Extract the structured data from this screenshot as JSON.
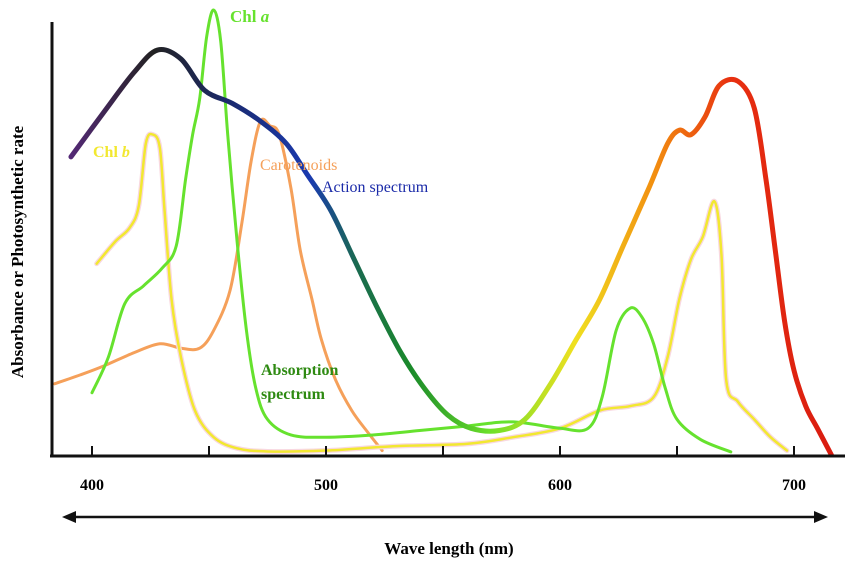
{
  "chart_data": {
    "type": "line",
    "title": "",
    "xlabel": "Wave length (nm)",
    "ylabel": "Absorbance or Photosynthetic rate",
    "xlim": [
      375,
      720
    ],
    "ylim": [
      0,
      1
    ],
    "x_ticks": [
      400,
      500,
      600,
      700
    ],
    "x_minor_ticks": [
      450,
      550,
      650
    ],
    "grid": false,
    "annotations": {
      "chl_a": {
        "text": "Chl ",
        "italic": "a",
        "color": "#66e22e"
      },
      "chl_b": {
        "text": "Chl ",
        "italic": "b",
        "color": "#f2e830"
      },
      "carotenoids": {
        "text": "Carotenoids",
        "color": "#f5a05a"
      },
      "action": {
        "text": "Action spectrum",
        "color": "#1a2aa8"
      },
      "absorption": {
        "line1": "Absorption",
        "line2": "spectrum",
        "color": "#2e8a12"
      }
    },
    "series": [
      {
        "name": "Action spectrum",
        "x": [
          391,
          405,
          418,
          428,
          438,
          448,
          460,
          472,
          483,
          492,
          502,
          512,
          522,
          532,
          542,
          552,
          562,
          574,
          585,
          596,
          607,
          617,
          627,
          638,
          646,
          651,
          656,
          662,
          668,
          676,
          683,
          688,
          692,
          696,
          700,
          705,
          710,
          716
        ],
        "y": [
          0.67,
          0.77,
          0.86,
          0.91,
          0.89,
          0.82,
          0.79,
          0.75,
          0.7,
          0.63,
          0.55,
          0.44,
          0.33,
          0.23,
          0.15,
          0.09,
          0.06,
          0.055,
          0.08,
          0.16,
          0.26,
          0.35,
          0.47,
          0.6,
          0.7,
          0.73,
          0.72,
          0.76,
          0.83,
          0.84,
          0.78,
          0.62,
          0.46,
          0.3,
          0.19,
          0.11,
          0.06,
          0.0
        ]
      },
      {
        "name": "Chl a",
        "x": [
          400,
          407,
          414,
          422,
          430,
          436,
          440,
          443,
          446,
          449,
          452,
          455,
          458,
          462,
          466,
          470,
          475,
          485,
          500,
          520,
          540,
          560,
          575,
          585,
          600,
          612,
          618,
          624,
          630,
          635,
          640,
          645,
          650,
          660,
          673
        ],
        "y": [
          0.14,
          0.22,
          0.34,
          0.38,
          0.42,
          0.47,
          0.62,
          0.72,
          0.8,
          0.94,
          1.0,
          0.93,
          0.72,
          0.48,
          0.28,
          0.15,
          0.08,
          0.045,
          0.04,
          0.045,
          0.055,
          0.065,
          0.074,
          0.072,
          0.06,
          0.06,
          0.13,
          0.28,
          0.33,
          0.31,
          0.25,
          0.15,
          0.08,
          0.035,
          0.007
        ]
      },
      {
        "name": "Chl b",
        "x": [
          402,
          410,
          416,
          420,
          423,
          426,
          429,
          431,
          434,
          438,
          444,
          452,
          462,
          475,
          500,
          530,
          560,
          580,
          600,
          617,
          630,
          640,
          646,
          651,
          656,
          661,
          666,
          669,
          671,
          676,
          683,
          690,
          697
        ],
        "y": [
          0.43,
          0.48,
          0.51,
          0.56,
          0.7,
          0.72,
          0.69,
          0.55,
          0.35,
          0.22,
          0.1,
          0.04,
          0.015,
          0.008,
          0.01,
          0.02,
          0.025,
          0.04,
          0.06,
          0.1,
          0.11,
          0.13,
          0.22,
          0.35,
          0.44,
          0.49,
          0.57,
          0.45,
          0.17,
          0.12,
          0.08,
          0.04,
          0.01
        ]
      },
      {
        "name": "Carotenoids",
        "x": [
          384,
          395,
          405,
          418,
          429,
          438,
          446,
          452,
          459,
          464,
          468,
          472,
          476,
          480,
          485,
          489,
          494,
          498,
          504,
          511,
          518,
          524
        ],
        "y": [
          0.16,
          0.18,
          0.2,
          0.23,
          0.25,
          0.24,
          0.24,
          0.28,
          0.37,
          0.52,
          0.66,
          0.75,
          0.74,
          0.72,
          0.6,
          0.46,
          0.35,
          0.26,
          0.17,
          0.1,
          0.05,
          0.01
        ]
      }
    ]
  }
}
